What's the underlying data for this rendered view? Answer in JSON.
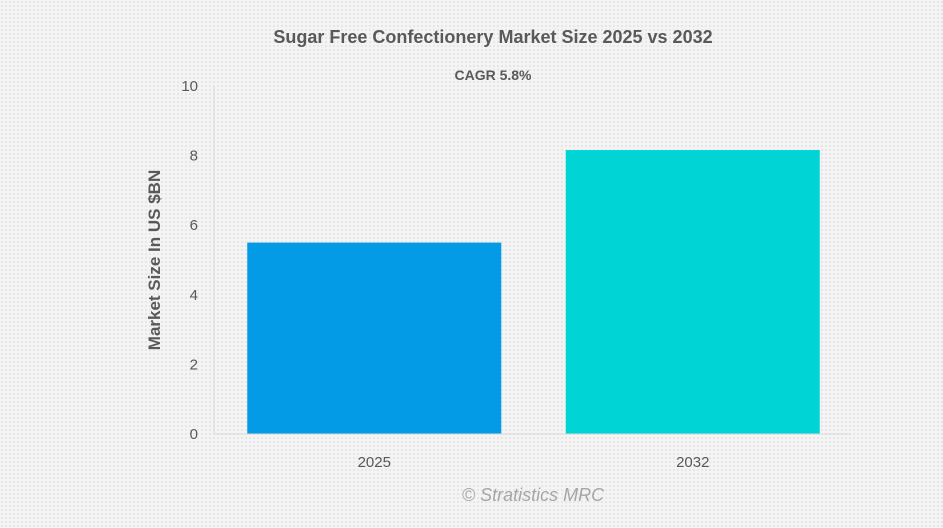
{
  "chart_data": {
    "type": "bar",
    "title": "Sugar Free Confectionery Market Size 2025 vs 2032",
    "subtitle": "CAGR 5.8%",
    "categories": [
      "2025",
      "2032"
    ],
    "values": [
      5.5,
      8.16
    ],
    "colors": [
      "#039be5",
      "#00d4d4"
    ],
    "xlabel": "",
    "ylabel": "Market Size In US $BN",
    "ylim": [
      0,
      10
    ],
    "yticks": [
      0,
      2,
      4,
      6,
      8,
      10
    ],
    "grid": false,
    "credit": "© Stratistics MRC"
  }
}
